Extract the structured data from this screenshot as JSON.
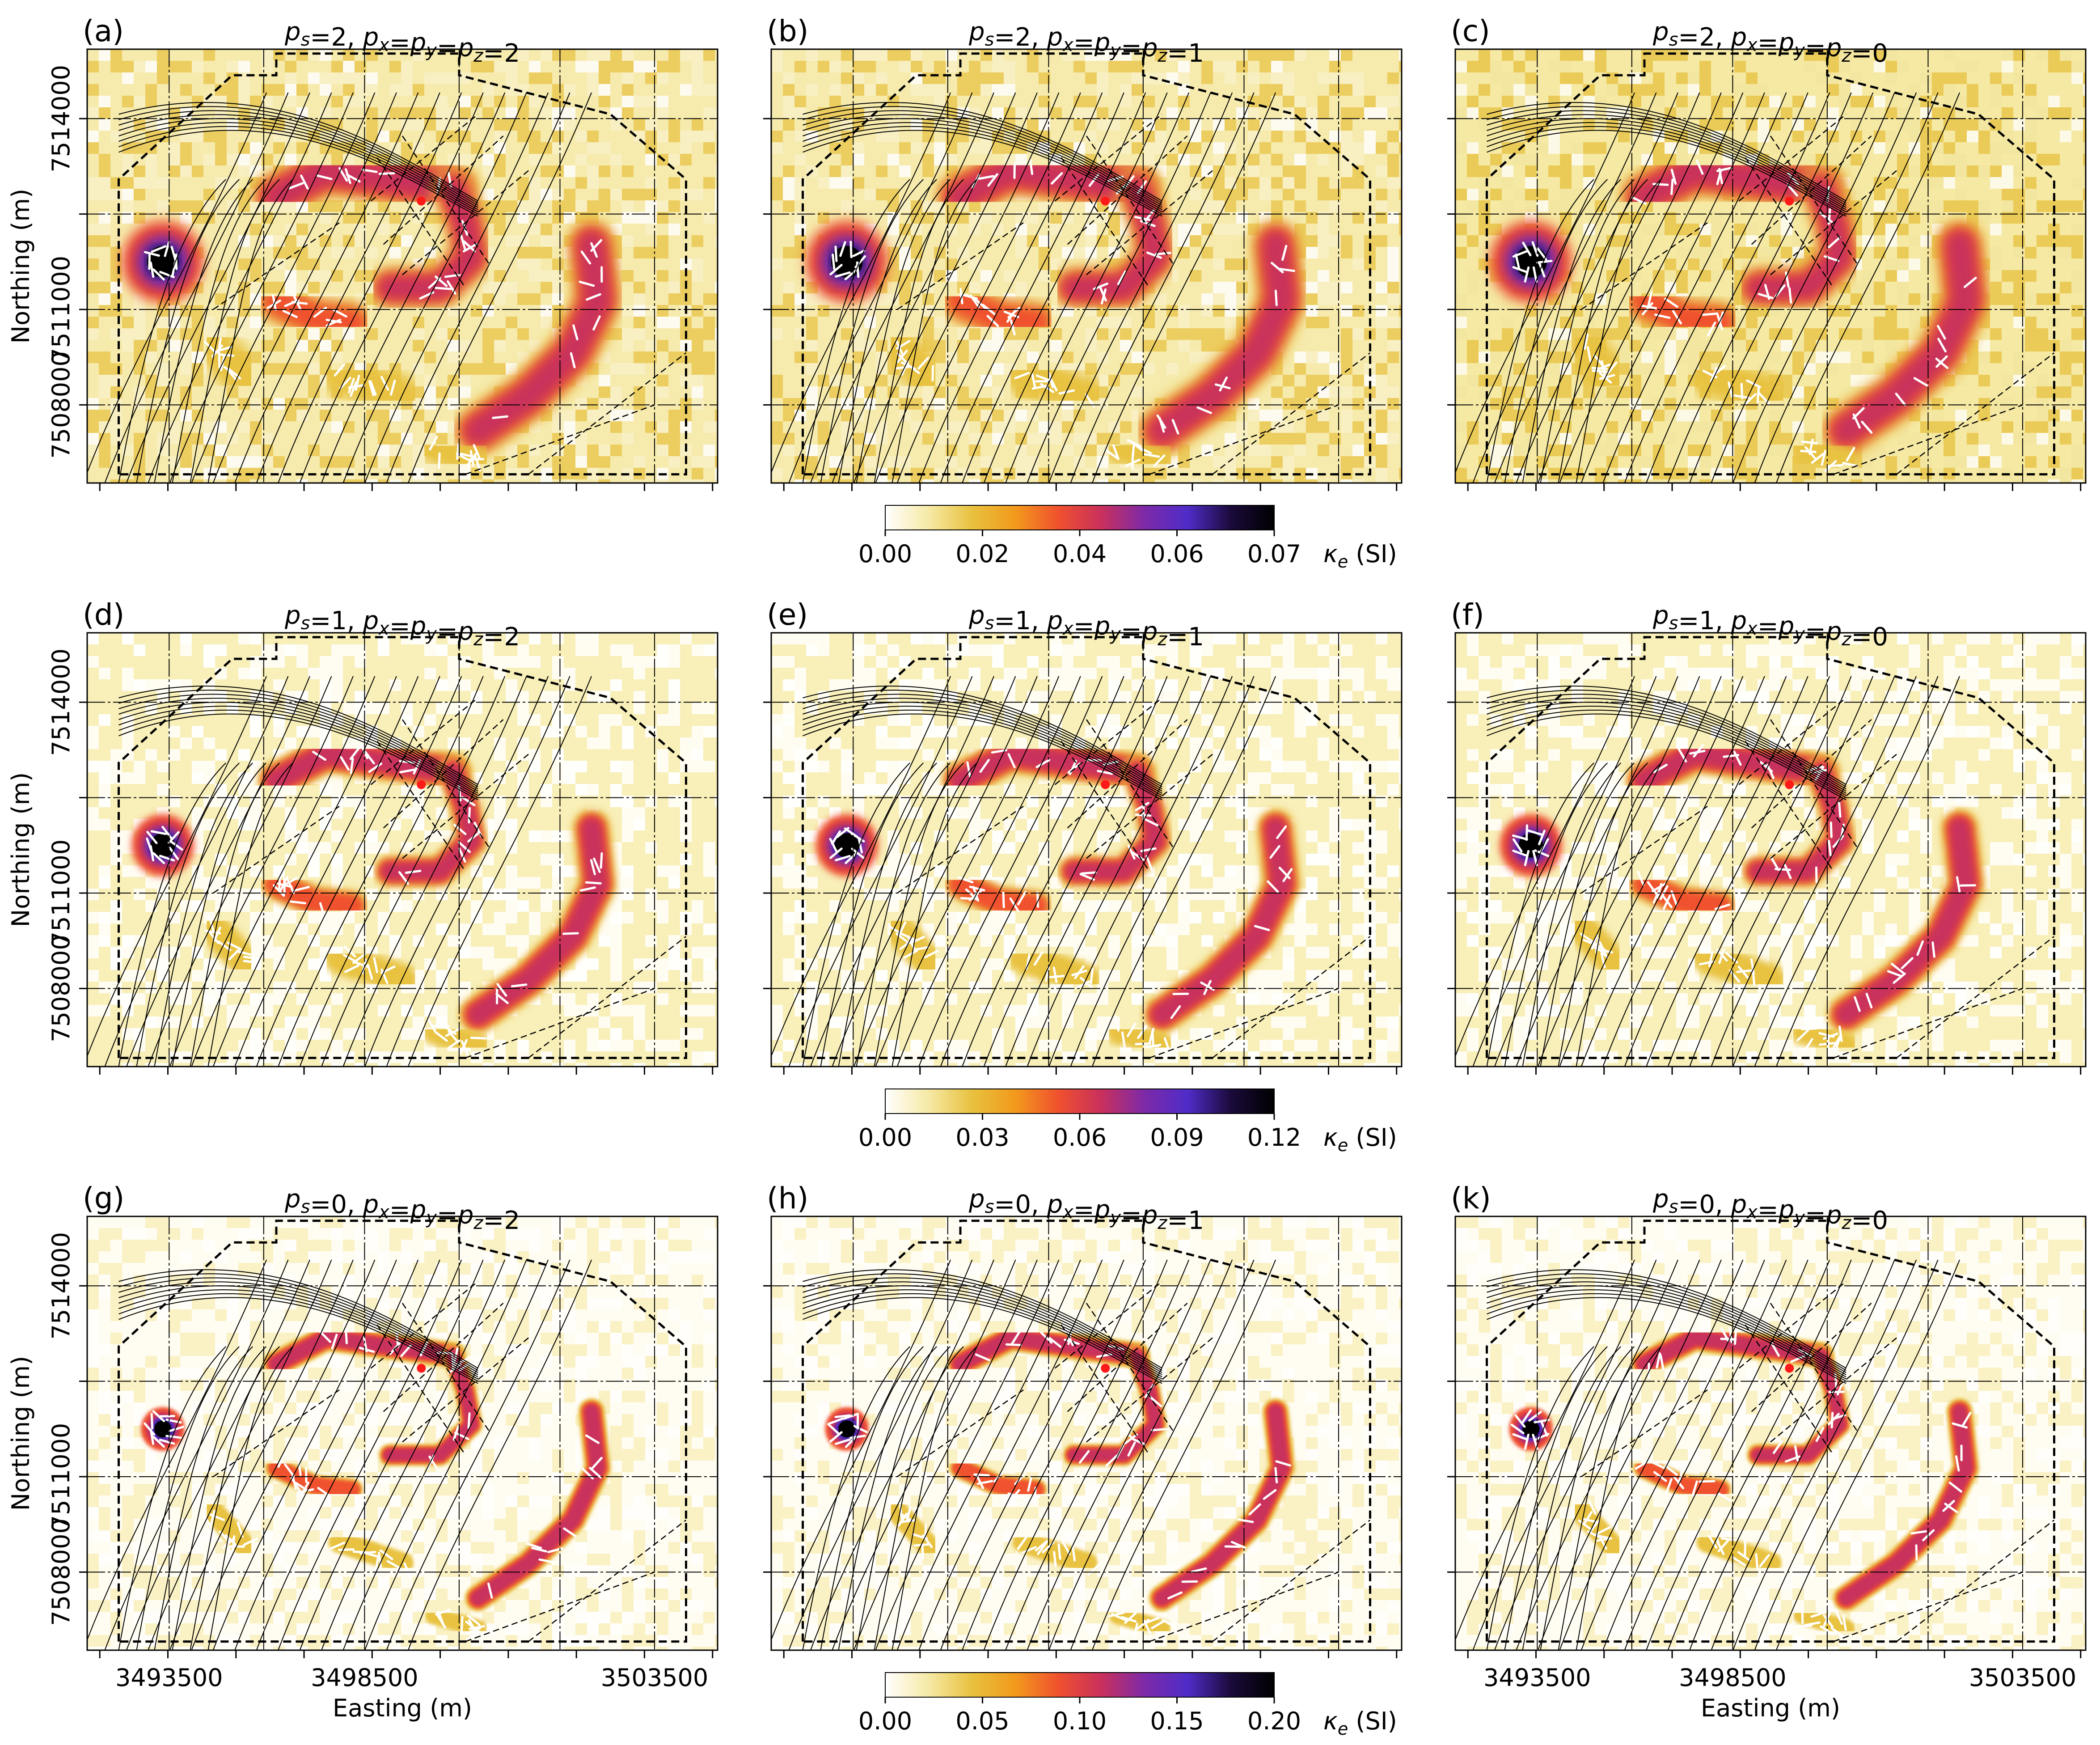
{
  "figure": {
    "x_label": "Easting (m)",
    "y_label": "Northing (m)",
    "x_ticks": [
      "3493500",
      "3498500",
      "3503500"
    ],
    "y_ticks": [
      "7514000",
      "7511000",
      "7508000"
    ],
    "colorbars": [
      {
        "label": "κ",
        "label_sub": "e",
        "label_unit": " (SI)",
        "ticks": [
          "0.00",
          "0.02",
          "0.04",
          "0.06",
          "0.07"
        ],
        "vmax": 0.07
      },
      {
        "label": "κ",
        "label_sub": "e",
        "label_unit": " (SI)",
        "ticks": [
          "0.00",
          "0.03",
          "0.06",
          "0.09",
          "0.12"
        ],
        "vmax": 0.12
      },
      {
        "label": "κ",
        "label_sub": "e",
        "label_unit": " (SI)",
        "ticks": [
          "0.00",
          "0.05",
          "0.10",
          "0.15",
          "0.20"
        ],
        "vmax": 0.2
      }
    ],
    "colormap": [
      "#ffffff",
      "#f6e9a6",
      "#e8c23f",
      "#f29a1c",
      "#f0512e",
      "#c9305c",
      "#7d2aa8",
      "#4f2cc8",
      "#1a0a3a",
      "#000000"
    ]
  },
  "chart_data": [
    {
      "type": "heatmap",
      "letter": "(a)",
      "ps": "2",
      "pxyz": "2",
      "row": 0,
      "col": 0
    },
    {
      "type": "heatmap",
      "letter": "(b)",
      "ps": "2",
      "pxyz": "1",
      "row": 0,
      "col": 1
    },
    {
      "type": "heatmap",
      "letter": "(c)",
      "ps": "2",
      "pxyz": "0",
      "row": 0,
      "col": 2
    },
    {
      "type": "heatmap",
      "letter": "(d)",
      "ps": "1",
      "pxyz": "2",
      "row": 1,
      "col": 0
    },
    {
      "type": "heatmap",
      "letter": "(e)",
      "ps": "1",
      "pxyz": "1",
      "row": 1,
      "col": 1
    },
    {
      "type": "heatmap",
      "letter": "(f)",
      "ps": "1",
      "pxyz": "0",
      "row": 1,
      "col": 2
    },
    {
      "type": "heatmap",
      "letter": "(g)",
      "ps": "0",
      "pxyz": "2",
      "row": 2,
      "col": 0
    },
    {
      "type": "heatmap",
      "letter": "(h)",
      "ps": "0",
      "pxyz": "1",
      "row": 2,
      "col": 1
    },
    {
      "type": "heatmap",
      "letter": "(k)",
      "ps": "0",
      "pxyz": "0",
      "row": 2,
      "col": 2
    }
  ]
}
